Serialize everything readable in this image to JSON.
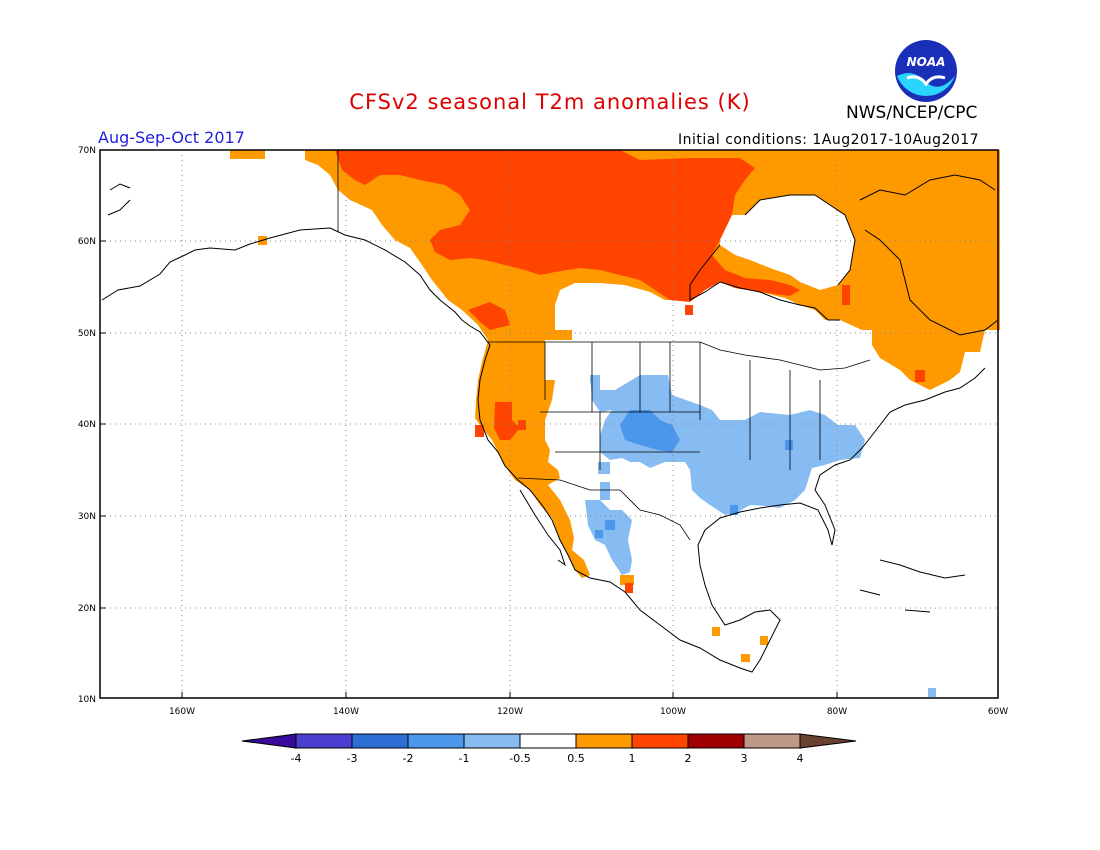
{
  "header": {
    "title": "CFSv2 seasonal T2m anomalies (K)",
    "agency": "NWS/NCEP/CPC",
    "period": "Aug-Sep-Oct 2017",
    "initial_conditions": "Initial conditions: 1Aug2017-10Aug2017",
    "logo_text": "NOAA"
  },
  "map": {
    "lon_range": [
      -172,
      -60
    ],
    "lat_range": [
      10,
      70
    ],
    "lat_ticks": [
      "10N",
      "20N",
      "30N",
      "40N",
      "50N",
      "60N",
      "70N"
    ],
    "lon_ticks": [
      "160W",
      "140W",
      "120W",
      "100W",
      "80W",
      "60W"
    ],
    "grid": true
  },
  "legend": {
    "labels": [
      "-4",
      "-3",
      "-2",
      "-1",
      "-0.5",
      "0.5",
      "1",
      "2",
      "3",
      "4"
    ],
    "colors": [
      "#3a0a9a",
      "#4a3fd0",
      "#2e6fd6",
      "#4a97ec",
      "#86bcf2",
      "#ffffff",
      "#ff9900",
      "#ff4400",
      "#a00000",
      "#c09888",
      "#6a4030"
    ]
  },
  "colors": {
    "title": "#dd0000",
    "period": "#2222dd",
    "warm_1": "#ff9900",
    "warm_2": "#ff4400",
    "cool_1": "#86bcf2",
    "cool_2": "#4a97ec"
  }
}
